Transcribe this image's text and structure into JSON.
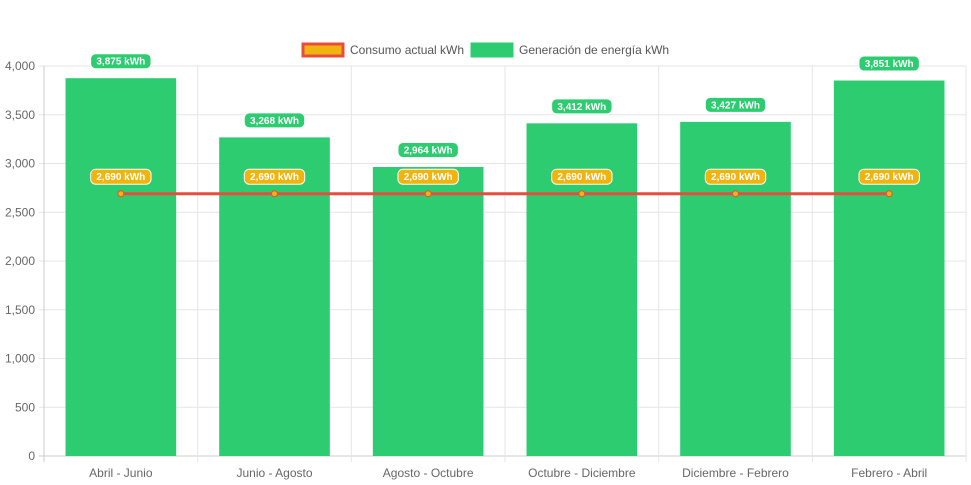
{
  "chart_data": {
    "type": "bar",
    "categories": [
      "Abril - Junio",
      "Junio - Agosto",
      "Agosto - Octubre",
      "Octubre - Diciembre",
      "Diciembre - Febrero",
      "Febrero - Abril"
    ],
    "series": [
      {
        "name": "Consumo actual kWh",
        "type": "line",
        "values": [
          2690,
          2690,
          2690,
          2690,
          2690,
          2690
        ],
        "labels": [
          "2,690 kWh",
          "2,690 kWh",
          "2,690 kWh",
          "2,690 kWh",
          "2,690 kWh",
          "2,690 kWh"
        ],
        "color": "#e74c3c",
        "label_bg": "#f1b40f",
        "point_color": "#f1b40f"
      },
      {
        "name": "Generación de energía kWh",
        "type": "bar",
        "values": [
          3875,
          3268,
          2964,
          3412,
          3427,
          3851
        ],
        "labels": [
          "3,875 kWh",
          "3,268 kWh",
          "2,964 kWh",
          "3,412 kWh",
          "3,427 kWh",
          "3,851 kWh"
        ],
        "color": "#2ecc71",
        "label_bg": "#2ecc71"
      }
    ],
    "ylim": [
      0,
      4000
    ],
    "yticks": [
      0,
      500,
      1000,
      1500,
      2000,
      2500,
      3000,
      3500,
      4000
    ],
    "ytick_labels": [
      "0",
      "500",
      "1,000",
      "1,500",
      "2,000",
      "2,500",
      "3,000",
      "3,500",
      "4,000"
    ],
    "grid": true,
    "legend": "top-center",
    "title": "",
    "xlabel": "",
    "ylabel": ""
  }
}
